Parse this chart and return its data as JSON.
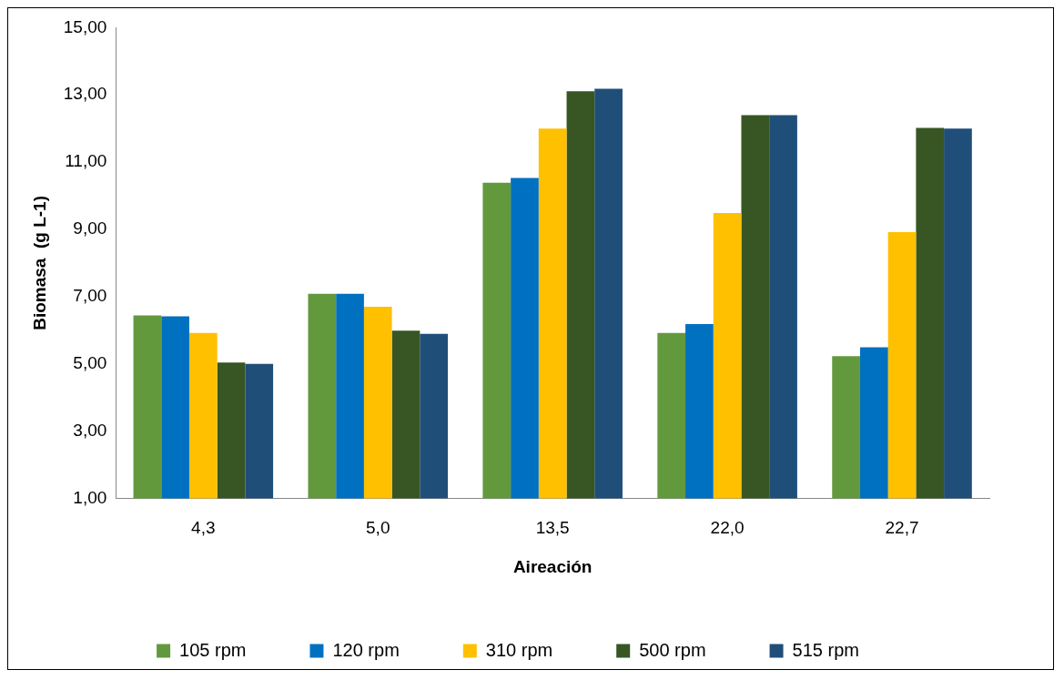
{
  "chart_data": {
    "type": "bar",
    "xlabel": "Aireación",
    "ylabel": "Biomasa  (g L-1)",
    "categories": [
      "4,3",
      "5,0",
      "13,5",
      "22,0",
      "22,7"
    ],
    "series": [
      {
        "name": "105 rpm",
        "color": "#63993d",
        "values": [
          6.44,
          7.08,
          10.39,
          5.92,
          5.23
        ]
      },
      {
        "name": "120 rpm",
        "color": "#0070c0",
        "values": [
          6.41,
          7.08,
          10.53,
          6.18,
          5.49
        ]
      },
      {
        "name": "310 rpm",
        "color": "#ffc000",
        "values": [
          5.92,
          6.7,
          12.0,
          9.49,
          8.92
        ]
      },
      {
        "name": "500 rpm",
        "color": "#375623",
        "values": [
          5.04,
          5.99,
          13.11,
          12.4,
          12.02
        ]
      },
      {
        "name": "515 rpm",
        "color": "#1f4e79",
        "values": [
          5.0,
          5.89,
          13.18,
          12.4,
          12.0
        ]
      }
    ],
    "ylim": [
      1,
      15
    ],
    "yticks": [
      {
        "value": 1,
        "label": "1,00"
      },
      {
        "value": 3,
        "label": "3,00"
      },
      {
        "value": 5,
        "label": "5,00"
      },
      {
        "value": 7,
        "label": "7,00"
      },
      {
        "value": 9,
        "label": "9,00"
      },
      {
        "value": 11,
        "label": "11,00"
      },
      {
        "value": 13,
        "label": "13,00"
      },
      {
        "value": 15,
        "label": "15,00"
      }
    ],
    "grid": false,
    "legend": "bottom"
  }
}
